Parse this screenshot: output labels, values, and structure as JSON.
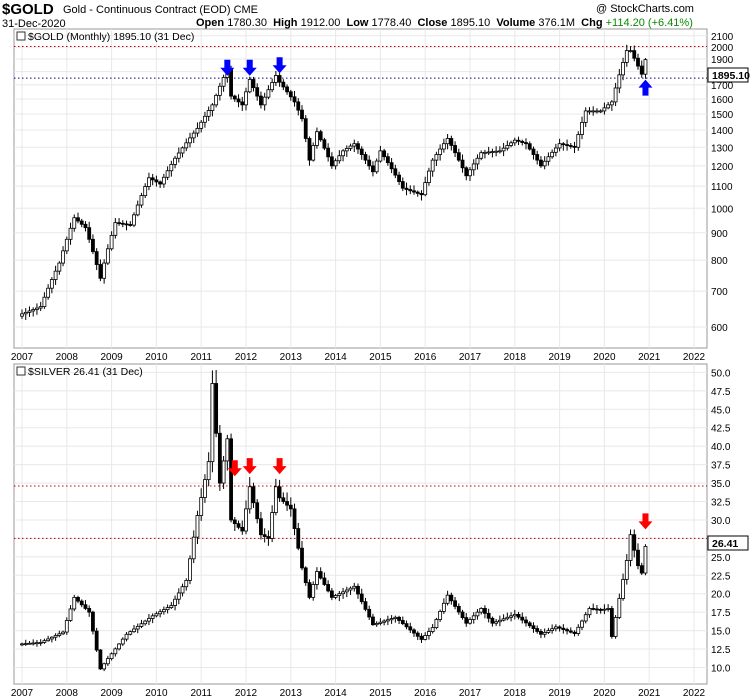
{
  "header": {
    "symbol": "$GOLD",
    "description": "Gold - Continuous Contract (EOD)",
    "exchange": "CME",
    "date": "31-Dec-2020",
    "open_label": "Open",
    "open": "1780.30",
    "high_label": "High",
    "high": "1912.00",
    "low_label": "Low",
    "low": "1778.40",
    "close_label": "Close",
    "close": "1895.10",
    "volume_label": "Volume",
    "volume": "376.1M",
    "chg_label": "Chg",
    "chg": "+114.20 (+6.41%)",
    "brand": "@ StockCharts.com"
  },
  "colors": {
    "gold_bars": "#000000",
    "gold_up_outline": "#000000",
    "gold_dashed_line": "#00008b",
    "resistance_dashed_line": "#c00000",
    "blue_arrow": "#0000ff",
    "red_arrow": "#ff0000",
    "frame": "#999999",
    "grid": "#e8e8e8"
  },
  "chart_data": [
    {
      "type": "candlestick",
      "title": "$GOLD (Monthly) 1895.10 (31 Dec)",
      "last_value_label": "1895.10",
      "x_ticks": [
        "2007",
        "2008",
        "2009",
        "2010",
        "2011",
        "2012",
        "2013",
        "2014",
        "2015",
        "2016",
        "2017",
        "2018",
        "2019",
        "2020",
        "2021",
        "2022"
      ],
      "y_ticks": [
        600,
        700,
        800,
        900,
        1000,
        1100,
        1200,
        1300,
        1400,
        1500,
        1600,
        1700,
        1800,
        1900,
        2000,
        2100
      ],
      "ylim": [
        565,
        2125
      ],
      "scale": "log",
      "grid": true,
      "x_range": [
        "2007-01",
        "2022-06"
      ],
      "horizontal_lines": [
        {
          "value": 1750,
          "color": "#00008b",
          "style": "dotted"
        },
        {
          "value": 2005,
          "color": "#c00000",
          "style": "dotted"
        }
      ],
      "arrows": [
        {
          "date": "2011-08",
          "value": 1830,
          "direction": "down",
          "color": "#0000ff"
        },
        {
          "date": "2012-02",
          "value": 1830,
          "direction": "down",
          "color": "#0000ff"
        },
        {
          "date": "2012-10",
          "value": 1850,
          "direction": "down",
          "color": "#0000ff"
        },
        {
          "date": "2020-12",
          "value": 1680,
          "direction": "up",
          "color": "#0000ff"
        }
      ],
      "anchors": [
        [
          "2007-01",
          635
        ],
        [
          "2007-06",
          655
        ],
        [
          "2007-11",
          790
        ],
        [
          "2008-03",
          960
        ],
        [
          "2008-06",
          920
        ],
        [
          "2008-10",
          740
        ],
        [
          "2009-02",
          940
        ],
        [
          "2009-06",
          930
        ],
        [
          "2009-11",
          1140
        ],
        [
          "2010-02",
          1110
        ],
        [
          "2010-06",
          1240
        ],
        [
          "2010-12",
          1410
        ],
        [
          "2011-04",
          1560
        ],
        [
          "2011-08",
          1820
        ],
        [
          "2011-09",
          1620
        ],
        [
          "2011-12",
          1560
        ],
        [
          "2012-02",
          1740
        ],
        [
          "2012-05",
          1560
        ],
        [
          "2012-09",
          1770
        ],
        [
          "2012-10",
          1720
        ],
        [
          "2013-02",
          1580
        ],
        [
          "2013-04",
          1470
        ],
        [
          "2013-06",
          1230
        ],
        [
          "2013-08",
          1390
        ],
        [
          "2013-12",
          1200
        ],
        [
          "2014-03",
          1280
        ],
        [
          "2014-06",
          1320
        ],
        [
          "2014-11",
          1170
        ],
        [
          "2015-01",
          1280
        ],
        [
          "2015-07",
          1090
        ],
        [
          "2015-12",
          1060
        ],
        [
          "2016-03",
          1230
        ],
        [
          "2016-07",
          1350
        ],
        [
          "2016-12",
          1150
        ],
        [
          "2017-04",
          1270
        ],
        [
          "2017-09",
          1280
        ],
        [
          "2018-01",
          1340
        ],
        [
          "2018-04",
          1320
        ],
        [
          "2018-08",
          1200
        ],
        [
          "2019-01",
          1320
        ],
        [
          "2019-05",
          1300
        ],
        [
          "2019-08",
          1520
        ],
        [
          "2019-12",
          1520
        ],
        [
          "2020-03",
          1580
        ],
        [
          "2020-07",
          1970
        ],
        [
          "2020-08",
          1970
        ],
        [
          "2020-11",
          1780
        ],
        [
          "2020-12",
          1895
        ]
      ]
    },
    {
      "type": "candlestick",
      "title": "$SILVER 26.41 (31 Dec)",
      "last_value_label": "26.41",
      "x_ticks": [
        "2007",
        "2008",
        "2009",
        "2010",
        "2011",
        "2012",
        "2013",
        "2014",
        "2015",
        "2016",
        "2017",
        "2018",
        "2019",
        "2020",
        "2021",
        "2022"
      ],
      "y_ticks": [
        10.0,
        12.5,
        15.0,
        17.5,
        20.0,
        22.5,
        25.0,
        27.5,
        30.0,
        32.5,
        35.0,
        37.5,
        40.0,
        42.5,
        45.0,
        47.5,
        50.0
      ],
      "ylim": [
        8.3,
        50.6
      ],
      "scale": "linear",
      "grid": true,
      "x_range": [
        "2007-01",
        "2022-06"
      ],
      "horizontal_lines": [
        {
          "value": 34.6,
          "color": "#c00000",
          "style": "dotted"
        },
        {
          "value": 27.5,
          "color": "#c00000",
          "style": "dotted"
        }
      ],
      "arrows": [
        {
          "date": "2011-10",
          "value": 37.0,
          "direction": "down",
          "color": "#ff0000"
        },
        {
          "date": "2012-02",
          "value": 37.3,
          "direction": "down",
          "color": "#ff0000"
        },
        {
          "date": "2012-10",
          "value": 37.3,
          "direction": "down",
          "color": "#ff0000"
        },
        {
          "date": "2020-12",
          "value": 29.8,
          "direction": "down",
          "color": "#ff0000"
        }
      ],
      "anchors": [
        [
          "2007-01",
          13.2
        ],
        [
          "2007-06",
          13.4
        ],
        [
          "2007-12",
          14.8
        ],
        [
          "2008-03",
          19.5
        ],
        [
          "2008-07",
          17.5
        ],
        [
          "2008-10",
          9.8
        ],
        [
          "2008-12",
          11.2
        ],
        [
          "2009-05",
          14.5
        ],
        [
          "2009-12",
          17.0
        ],
        [
          "2010-05",
          18.4
        ],
        [
          "2010-09",
          21.8
        ],
        [
          "2010-12",
          30.6
        ],
        [
          "2011-03",
          37.9
        ],
        [
          "2011-04",
          48.5
        ],
        [
          "2011-06",
          35.0
        ],
        [
          "2011-08",
          41.0
        ],
        [
          "2011-09",
          30.0
        ],
        [
          "2011-12",
          28.5
        ],
        [
          "2012-02",
          34.5
        ],
        [
          "2012-05",
          28.0
        ],
        [
          "2012-07",
          27.5
        ],
        [
          "2012-09",
          34.5
        ],
        [
          "2012-10",
          33.0
        ],
        [
          "2013-01",
          31.5
        ],
        [
          "2013-04",
          23.5
        ],
        [
          "2013-06",
          19.5
        ],
        [
          "2013-08",
          23.0
        ],
        [
          "2013-12",
          19.5
        ],
        [
          "2014-06",
          21.0
        ],
        [
          "2014-11",
          15.8
        ],
        [
          "2015-05",
          16.8
        ],
        [
          "2015-12",
          13.8
        ],
        [
          "2016-03",
          15.4
        ],
        [
          "2016-07",
          19.8
        ],
        [
          "2016-12",
          16.0
        ],
        [
          "2017-04",
          18.0
        ],
        [
          "2017-07",
          16.0
        ],
        [
          "2018-01",
          17.2
        ],
        [
          "2018-08",
          14.5
        ],
        [
          "2018-12",
          15.5
        ],
        [
          "2019-05",
          14.6
        ],
        [
          "2019-09",
          18.0
        ],
        [
          "2019-12",
          17.8
        ],
        [
          "2020-02",
          18.0
        ],
        [
          "2020-03",
          14.2
        ],
        [
          "2020-07",
          24.5
        ],
        [
          "2020-08",
          28.0
        ],
        [
          "2020-10",
          23.8
        ],
        [
          "2020-11",
          22.8
        ],
        [
          "2020-12",
          26.41
        ]
      ]
    }
  ]
}
